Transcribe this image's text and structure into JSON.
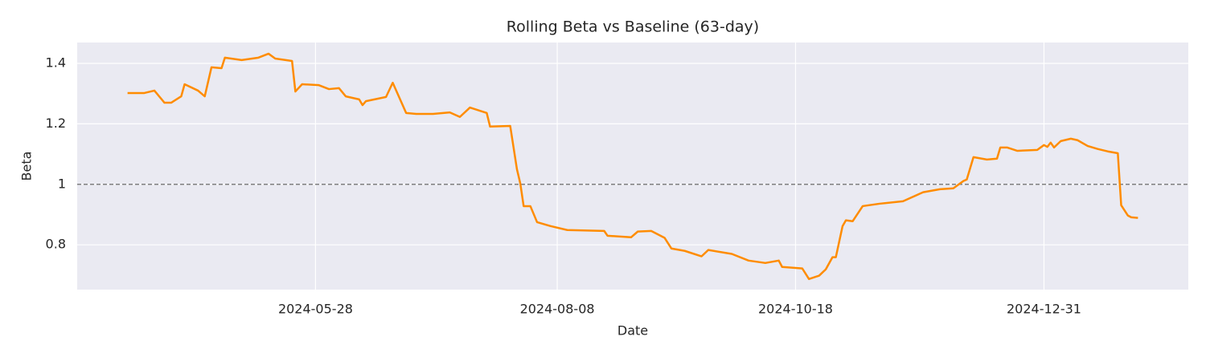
{
  "chart_data": {
    "type": "line",
    "title": "Rolling Beta vs Baseline (63-day)",
    "x_label": "Date",
    "y_label": "Beta",
    "x": [
      "2024-04-02",
      "2024-04-07",
      "2024-04-10",
      "2024-04-13",
      "2024-04-15",
      "2024-04-18",
      "2024-04-19",
      "2024-04-23",
      "2024-04-25",
      "2024-04-27",
      "2024-04-30",
      "2024-05-01",
      "2024-05-06",
      "2024-05-11",
      "2024-05-14",
      "2024-05-16",
      "2024-05-21",
      "2024-05-22",
      "2024-05-24",
      "2024-05-29",
      "2024-06-01",
      "2024-06-04",
      "2024-06-06",
      "2024-06-10",
      "2024-06-11",
      "2024-06-12",
      "2024-06-18",
      "2024-06-20",
      "2024-06-24",
      "2024-06-27",
      "2024-07-02",
      "2024-07-07",
      "2024-07-10",
      "2024-07-13",
      "2024-07-18",
      "2024-07-19",
      "2024-07-25",
      "2024-07-27",
      "2024-07-28",
      "2024-07-29",
      "2024-07-31",
      "2024-08-02",
      "2024-08-06",
      "2024-08-11",
      "2024-08-22",
      "2024-08-23",
      "2024-08-30",
      "2024-09-01",
      "2024-09-05",
      "2024-09-09",
      "2024-09-11",
      "2024-09-15",
      "2024-09-20",
      "2024-09-22",
      "2024-09-29",
      "2024-10-04",
      "2024-10-09",
      "2024-10-13",
      "2024-10-14",
      "2024-10-20",
      "2024-10-22",
      "2024-10-25",
      "2024-10-27",
      "2024-10-29",
      "2024-10-30",
      "2024-11-01",
      "2024-11-02",
      "2024-11-04",
      "2024-11-07",
      "2024-11-12",
      "2024-11-19",
      "2024-11-25",
      "2024-11-30",
      "2024-12-04",
      "2024-12-07",
      "2024-12-08",
      "2024-12-10",
      "2024-12-14",
      "2024-12-17",
      "2024-12-18",
      "2024-12-20",
      "2024-12-23",
      "2024-12-29",
      "2024-12-31",
      "2025-01-01",
      "2025-01-02",
      "2025-01-03",
      "2025-01-05",
      "2025-01-08",
      "2025-01-10",
      "2025-01-13",
      "2025-01-16",
      "2025-01-19",
      "2025-01-22",
      "2025-01-23",
      "2025-01-25",
      "2025-01-26",
      "2025-01-28"
    ],
    "series": [
      {
        "name": "Rolling Beta",
        "color": "#ff8c00",
        "values": [
          1.302,
          1.302,
          1.31,
          1.27,
          1.27,
          1.291,
          1.331,
          1.31,
          1.291,
          1.387,
          1.384,
          1.419,
          1.411,
          1.419,
          1.432,
          1.416,
          1.408,
          1.307,
          1.331,
          1.328,
          1.315,
          1.318,
          1.291,
          1.281,
          1.262,
          1.275,
          1.289,
          1.336,
          1.236,
          1.233,
          1.233,
          1.238,
          1.223,
          1.254,
          1.236,
          1.191,
          1.193,
          1.05,
          1.003,
          0.928,
          0.928,
          0.875,
          0.862,
          0.849,
          0.846,
          0.83,
          0.825,
          0.844,
          0.846,
          0.823,
          0.788,
          0.78,
          0.762,
          0.783,
          0.77,
          0.748,
          0.74,
          0.748,
          0.727,
          0.722,
          0.687,
          0.698,
          0.719,
          0.759,
          0.759,
          0.862,
          0.881,
          0.878,
          0.928,
          0.936,
          0.944,
          0.974,
          0.984,
          0.987,
          1.011,
          1.016,
          1.09,
          1.082,
          1.085,
          1.122,
          1.122,
          1.111,
          1.114,
          1.13,
          1.124,
          1.138,
          1.122,
          1.143,
          1.151,
          1.146,
          1.127,
          1.117,
          1.109,
          1.103,
          0.931,
          0.897,
          0.891,
          0.889
        ]
      }
    ],
    "hline": {
      "value": 1.0,
      "color": "#808080"
    },
    "xlim": [
      "2024-03-18",
      "2025-02-12"
    ],
    "xticks": [
      "2024-05-28",
      "2024-08-08",
      "2024-10-18",
      "2024-12-31"
    ],
    "ylim": [
      0.652,
      1.469
    ],
    "yticks": [
      0.8,
      1.0,
      1.2,
      1.4
    ],
    "grid": true
  }
}
